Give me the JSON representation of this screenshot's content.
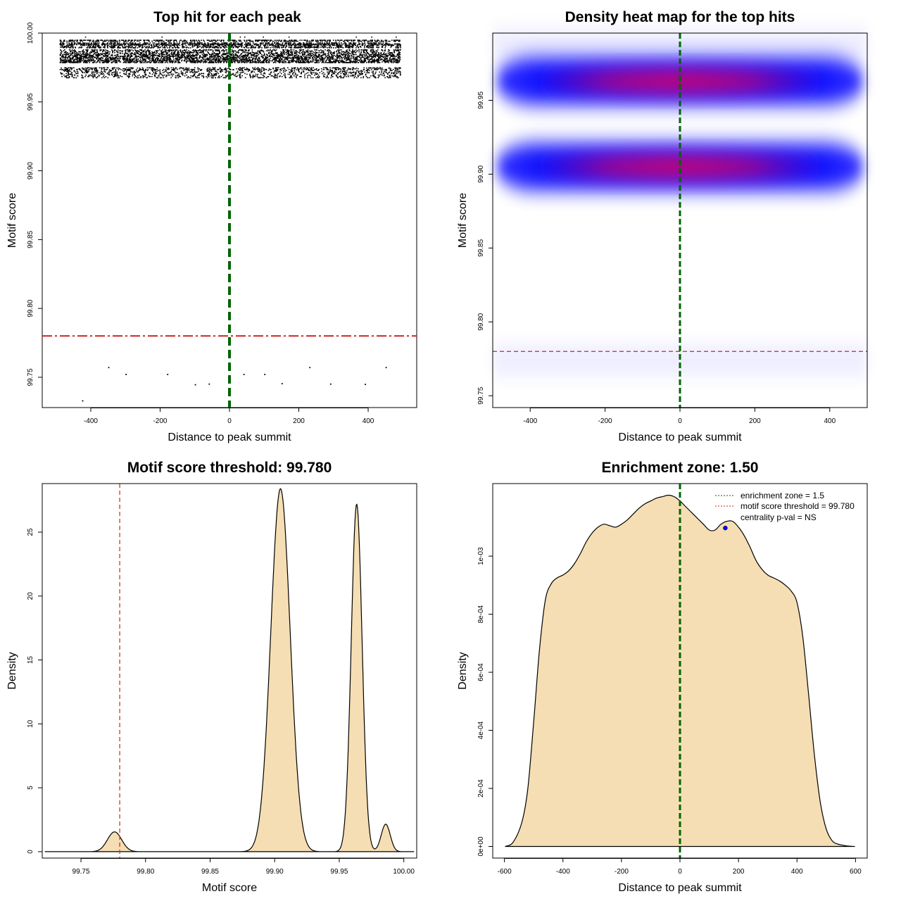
{
  "colors": {
    "threshold_line": "#cc2222",
    "center_line": "#006400",
    "density_fill": "#f5deb3",
    "heat_low": "#0000ff",
    "heat_high": "#ff0000",
    "centrality_point": "#0000ff"
  },
  "chart_data": [
    {
      "type": "scatter",
      "title": "Top hit for each peak",
      "xlabel": "Distance to peak summit",
      "ylabel": "Motif score",
      "xlim": [
        -540,
        540
      ],
      "ylim": [
        99.728,
        100.0
      ],
      "xticks": [
        -400,
        -200,
        0,
        200,
        400
      ],
      "xtick_labels": [
        "-400",
        "-200",
        "0",
        "200",
        "400"
      ],
      "yticks": [
        99.75,
        99.8,
        99.85,
        99.9,
        99.95,
        100.0
      ],
      "ytick_labels": [
        "99.75",
        "99.80",
        "99.85",
        "99.90",
        "99.95",
        "100.00"
      ],
      "score_bands": [
        99.9975,
        99.9952,
        99.9945,
        99.9932,
        99.9925,
        99.992,
        99.9915,
        99.9908,
        99.9902,
        99.9897,
        99.9882,
        99.9875,
        99.9868,
        99.9862,
        99.9855,
        99.9848,
        99.9842,
        99.9835,
        99.9828,
        99.9822,
        99.9815,
        99.9808,
        99.9802,
        99.9795,
        99.979,
        99.98,
        99.975,
        99.974,
        99.968,
        99.9745,
        99.9752,
        99.9738,
        99.9732,
        99.9727,
        99.9721,
        99.9716,
        99.971,
        99.9705,
        99.9699,
        99.9693,
        99.9688,
        99.968
      ],
      "threshold": 99.78,
      "center": 0
    },
    {
      "type": "heatmap",
      "title": "Density heat map for the top hits",
      "xlabel": "Distance to peak summit",
      "ylabel": "Motif score",
      "xlim": [
        -500,
        500
      ],
      "ylim": [
        99.742,
        99.9955
      ],
      "xticks": [
        -400,
        -200,
        0,
        200,
        400
      ],
      "xtick_labels": [
        "-400",
        "-200",
        "0",
        "200",
        "400"
      ],
      "yticks": [
        99.75,
        99.8,
        99.85,
        99.9,
        99.95
      ],
      "ytick_labels": [
        "99.75",
        "99.80",
        "99.85",
        "99.90",
        "99.95"
      ],
      "bands": [
        {
          "score": 99.963,
          "intensity": 1.0
        },
        {
          "score": 99.905,
          "intensity": 1.0
        },
        {
          "score": 99.987,
          "intensity": 0.08
        },
        {
          "score": 99.774,
          "intensity": 0.07
        }
      ],
      "threshold": 99.78,
      "center": 0
    },
    {
      "type": "area",
      "title": "Motif score threshold: 99.780",
      "xlabel": "Motif score",
      "ylabel": "Density",
      "xlim": [
        99.72,
        100.01
      ],
      "ylim": [
        -0.5,
        28.8
      ],
      "xticks": [
        99.75,
        99.8,
        99.85,
        99.9,
        99.95,
        100.0
      ],
      "xtick_labels": [
        "99.75",
        "99.80",
        "99.85",
        "99.90",
        "99.95",
        "100.00"
      ],
      "yticks": [
        0,
        5,
        10,
        15,
        20,
        25
      ],
      "ytick_labels": [
        "0",
        "5",
        "10",
        "15",
        "20",
        "25"
      ],
      "peaks": [
        {
          "mu": 99.776,
          "sigma": 0.0055,
          "height": 1.55
        },
        {
          "mu": 99.9045,
          "sigma": 0.0075,
          "height": 28.4
        },
        {
          "mu": 99.9635,
          "sigma": 0.0042,
          "height": 27.2
        },
        {
          "mu": 99.986,
          "sigma": 0.0035,
          "height": 2.15
        }
      ],
      "x_range": [
        99.722,
        100.008
      ],
      "threshold": 99.78
    },
    {
      "type": "area",
      "title": "Enrichment zone: 1.50",
      "xlabel": "Distance to peak summit",
      "ylabel": "Density",
      "xlim": [
        -640,
        640
      ],
      "ylim": [
        -4e-05,
        0.00125
      ],
      "xticks": [
        -600,
        -400,
        -200,
        0,
        200,
        400,
        600
      ],
      "xtick_labels": [
        "-600",
        "-400",
        "-200",
        "0",
        "200",
        "400",
        "600"
      ],
      "yticks": [
        0,
        0.0002,
        0.0004,
        0.0006,
        0.0008,
        0.001
      ],
      "ytick_labels": [
        "0e+00",
        "2e-04",
        "4e-04",
        "6e-04",
        "8e-04",
        "1e-03"
      ],
      "x": [
        -598,
        -570,
        -540,
        -520,
        -500,
        -480,
        -460,
        -440,
        -420,
        -400,
        -380,
        -360,
        -340,
        -320,
        -300,
        -280,
        -260,
        -240,
        -220,
        -200,
        -180,
        -160,
        -140,
        -120,
        -100,
        -80,
        -60,
        -40,
        -20,
        0,
        20,
        40,
        60,
        80,
        100,
        120,
        140,
        160,
        180,
        200,
        220,
        240,
        260,
        280,
        300,
        320,
        340,
        360,
        380,
        400,
        420,
        440,
        460,
        480,
        500,
        520,
        540,
        570,
        598
      ],
      "y": [
        0,
        1.5e-05,
        8.5e-05,
        0.0002,
        0.00043,
        0.00068,
        0.00085,
        0.000905,
        0.000925,
        0.000935,
        0.00095,
        0.000975,
        0.00101,
        0.00105,
        0.00108,
        0.0011,
        0.00111,
        0.001105,
        0.0011,
        0.00111,
        0.001125,
        0.001145,
        0.001165,
        0.00118,
        0.00119,
        0.0012,
        0.001205,
        0.00121,
        0.001205,
        0.00119,
        0.00117,
        0.00115,
        0.00113,
        0.00111,
        0.00109,
        0.00109,
        0.00111,
        0.00112,
        0.00112,
        0.0011,
        0.00107,
        0.00103,
        0.000985,
        0.000955,
        0.000935,
        0.000925,
        0.000915,
        0.0009,
        0.00088,
        0.00084,
        0.00072,
        0.00052,
        0.00031,
        0.00015,
        6e-05,
        2e-05,
        8e-06,
        2e-06,
        0
      ],
      "center": 0,
      "centrality_point": {
        "x": 155,
        "y": 0.001097
      },
      "legend": {
        "position": "top-right",
        "entries": [
          "enrichment zone = 1.5",
          "motif score threshold = 99.780",
          "centrality p-val = NS"
        ]
      }
    }
  ]
}
